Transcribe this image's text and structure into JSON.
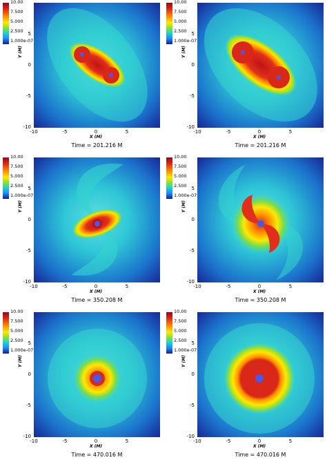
{
  "colorbar": {
    "ticks": [
      "10.00",
      "7.500",
      "5.000",
      "2.500",
      "1.000e-07"
    ]
  },
  "axes": {
    "xlabel": "X (M)",
    "ylabel": "Y (M)",
    "xticks": [
      "-10",
      "-5",
      "0",
      "5"
    ],
    "yticks": [
      "5",
      "0",
      "-5",
      "-10"
    ]
  },
  "panels": [
    {
      "time": "Time = 201.216 M"
    },
    {
      "time": "Time = 201.216 M"
    },
    {
      "time": "Time = 350.208 M"
    },
    {
      "time": "Time = 350.208 M"
    },
    {
      "time": "Time = 470.016 M"
    },
    {
      "time": "Time = 470.016 M"
    }
  ],
  "colors": {
    "dark_red": "#b01313",
    "red": "#e53020",
    "orange": "#ff8c00",
    "yellow": "#ffe400",
    "green": "#9be02a",
    "cyan": "#3ad6d0",
    "blue": "#1e6fe0",
    "navy": "#1a1a9e",
    "black_hole": "#4b58e6"
  }
}
